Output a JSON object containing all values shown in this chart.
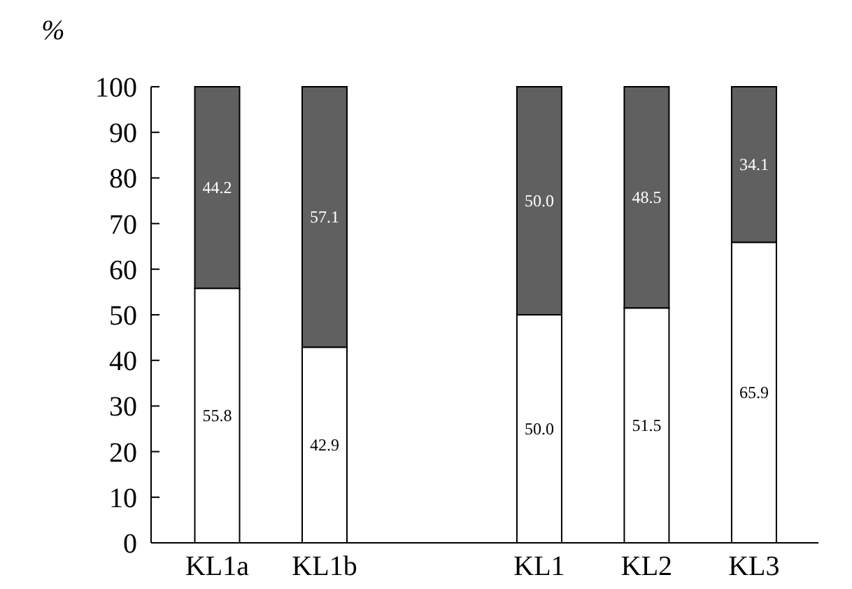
{
  "chart_data": {
    "type": "bar",
    "stacked": true,
    "ylabel": "%",
    "categories": [
      "KL1a",
      "KL1b",
      null,
      "KL1",
      "KL2",
      "KL3"
    ],
    "series": [
      {
        "color": "#ffffff",
        "values": [
          55.8,
          42.9,
          null,
          50.0,
          51.5,
          65.9
        ],
        "value_labels": [
          "55.8",
          "42.9",
          null,
          "50.0",
          "51.5",
          "65.9"
        ]
      },
      {
        "color": "#606060",
        "values": [
          44.2,
          57.1,
          null,
          50.0,
          48.5,
          34.1
        ],
        "value_labels": [
          "44.2",
          "57.1",
          null,
          "50.0",
          "48.5",
          "34.1"
        ]
      }
    ],
    "ylim": [
      0,
      100
    ],
    "yticks": [
      0,
      10,
      20,
      30,
      40,
      50,
      60,
      70,
      80,
      90,
      100
    ],
    "grid": false
  }
}
